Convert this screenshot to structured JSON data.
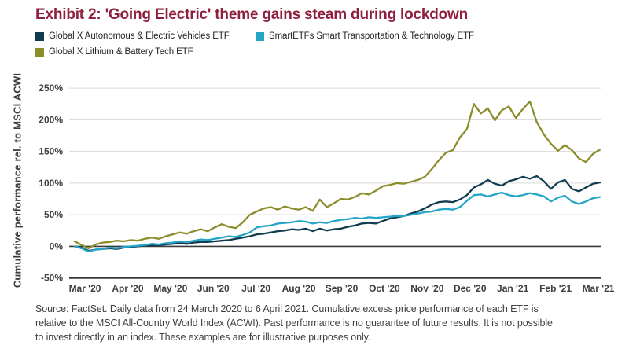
{
  "page": {
    "title": "Exhibit 2: 'Going Electric' theme gains steam during lockdown",
    "title_color": "#8e1f3e"
  },
  "chart_data": {
    "type": "line",
    "title": "Exhibit 2: 'Going Electric' theme gains steam during lockdown",
    "ylabel": "Cumulative performance rel. to MSCI ACWI",
    "xlabel": "",
    "unit": "%",
    "period": "Daily data from 24 March 2020 to 6 April 2021",
    "x_labels": [
      "Mar '20",
      "Apr '20",
      "May '20",
      "Jun '20",
      "Jul '20",
      "Aug '20",
      "Sep '20",
      "Oct '20",
      "Nov '20",
      "Dec '20",
      "Jan '21",
      "Feb '21",
      "Mar '21"
    ],
    "ylim": [
      -50,
      250
    ],
    "yticks": [
      250,
      200,
      150,
      100,
      50,
      0,
      -50
    ],
    "grid": "horizontal",
    "legend_position": "top-left",
    "axis_color": "#3a3a3a",
    "gridline_color": "#d9d9d9",
    "series": [
      {
        "name": "Global X Autonomous & Electric Vehicles ETF",
        "color": "#103c50",
        "values": [
          0,
          -2,
          -7,
          -5,
          -4,
          -3,
          -4,
          -2,
          -1,
          0,
          1,
          2,
          2,
          3,
          4,
          5,
          4,
          6,
          7,
          7,
          8,
          9,
          10,
          12,
          14,
          16,
          19,
          20,
          22,
          24,
          25,
          27,
          26,
          28,
          24,
          28,
          25,
          27,
          28,
          31,
          33,
          36,
          37,
          36,
          40,
          44,
          46,
          48,
          52,
          55,
          60,
          66,
          70,
          71,
          70,
          74,
          81,
          93,
          98,
          105,
          99,
          96,
          103,
          106,
          110,
          107,
          111,
          103,
          91,
          101,
          105,
          91,
          87,
          93,
          99,
          101
        ]
      },
      {
        "name": "SmartETFs Smart Transportation & Technology ETF",
        "color": "#24a5c6",
        "values": [
          0,
          -3,
          -8,
          -5,
          -4,
          -2,
          -3,
          -1,
          0,
          1,
          2,
          4,
          3,
          5,
          6,
          8,
          7,
          9,
          11,
          10,
          12,
          14,
          16,
          15,
          18,
          22,
          30,
          32,
          33,
          36,
          37,
          38,
          40,
          39,
          36,
          38,
          37,
          40,
          42,
          43,
          45,
          44,
          46,
          45,
          46,
          47,
          48,
          48,
          50,
          52,
          54,
          55,
          58,
          59,
          58,
          62,
          72,
          81,
          82,
          79,
          82,
          85,
          81,
          79,
          81,
          84,
          82,
          79,
          71,
          77,
          80,
          71,
          67,
          71,
          76,
          78
        ]
      },
      {
        "name": "Global X Lithium & Battery Tech ETF",
        "color": "#8c8d2a",
        "values": [
          8,
          2,
          -3,
          3,
          6,
          7,
          9,
          8,
          10,
          9,
          12,
          14,
          12,
          16,
          19,
          22,
          20,
          24,
          27,
          24,
          30,
          35,
          31,
          29,
          38,
          50,
          55,
          60,
          62,
          58,
          63,
          60,
          58,
          62,
          56,
          74,
          62,
          68,
          75,
          74,
          78,
          84,
          82,
          88,
          95,
          97,
          100,
          99,
          102,
          105,
          110,
          122,
          136,
          148,
          152,
          172,
          185,
          225,
          210,
          218,
          199,
          215,
          221,
          203,
          217,
          229,
          196,
          177,
          162,
          151,
          160,
          152,
          139,
          133,
          146,
          153
        ]
      }
    ]
  },
  "source": {
    "line1": "Source: FactSet. Daily data from 24 March 2020 to 6 April 2021. Cumulative excess price performance of each ETF is",
    "line2": "relative to the MSCI All-Country World Index (ACWI). Past performance is no guarantee of future results. It is not possible",
    "line3": "to invest directly in an index. These examples are for illustrative purposes only."
  }
}
